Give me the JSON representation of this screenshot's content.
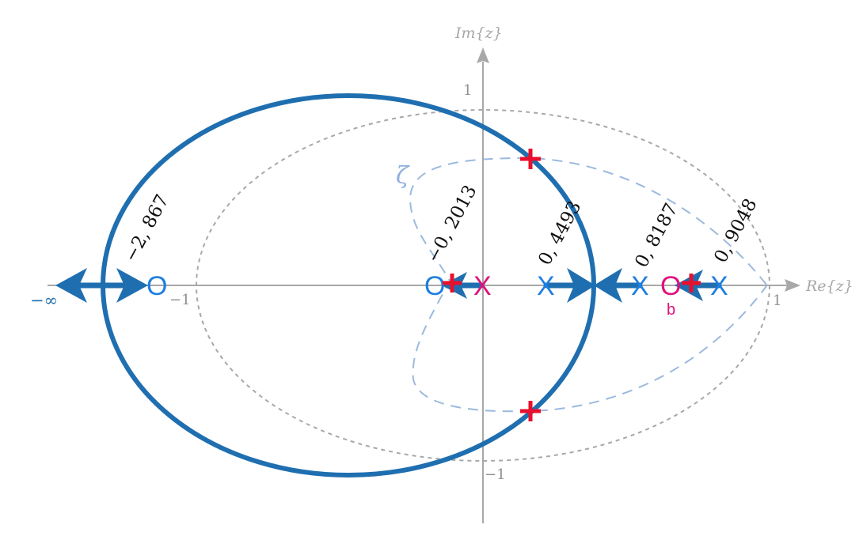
{
  "axes": {
    "x_title": "Re{z}",
    "y_title": "Im{z}",
    "x_ticks": [
      {
        "label": "−1",
        "value": -1
      },
      {
        "label": "1",
        "value": 1
      }
    ],
    "y_ticks": [
      {
        "label": "1",
        "value": 1
      },
      {
        "label": "−1",
        "value": -1
      }
    ]
  },
  "zeta_label": "ζ",
  "infinity_label": "−∞",
  "zero_b_label": "b",
  "poles": [
    {
      "re": 0,
      "marker": "X",
      "color": "magenta"
    },
    {
      "re": 0.4493,
      "marker": "X",
      "color": "blue"
    },
    {
      "re": 0.8187,
      "marker": "X",
      "color": "blue"
    },
    {
      "re": 0.9048,
      "marker": "X",
      "color": "blue"
    }
  ],
  "zeros": [
    {
      "re": -2.867,
      "marker": "O",
      "color": "blue"
    },
    {
      "re": -0.2013,
      "marker": "O",
      "color": "blue"
    },
    {
      "re": 0.8187,
      "marker": "O",
      "color": "magenta"
    }
  ],
  "closed_loop_poles": [
    {
      "re": 0.32,
      "im": 0.45
    },
    {
      "re": 0.32,
      "im": -0.45
    },
    {
      "re": -0.2,
      "im": 0
    },
    {
      "re": 0.82,
      "im": 0
    }
  ],
  "value_labels": [
    {
      "text": "−2, 867"
    },
    {
      "text": "−0, 2013"
    },
    {
      "text": "0, 4493"
    },
    {
      "text": "0, 8187"
    },
    {
      "text": "0, 9048"
    }
  ],
  "colors": {
    "locus": "#1f6fb0",
    "pole_blue": "#1c7fe0",
    "magenta": "#e0107a",
    "cross": "#e8102c",
    "axis": "#a8a8a8",
    "zeta": "#9bb9de"
  }
}
